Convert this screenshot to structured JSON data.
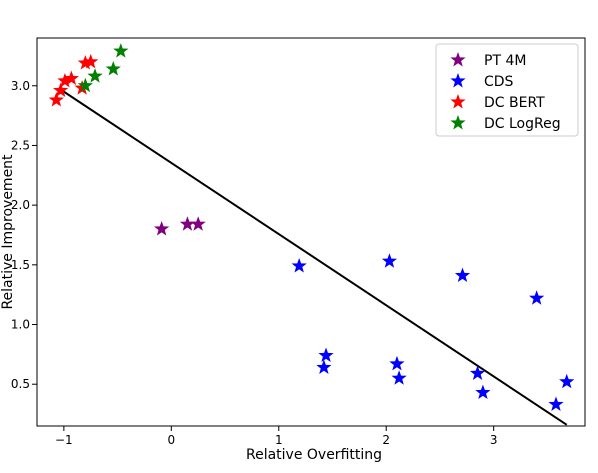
{
  "chart_data": {
    "type": "scatter",
    "xlabel": "Relative Overfitting",
    "ylabel": "Relative Improvement",
    "xlim": [
      -1.25,
      3.85
    ],
    "ylim": [
      0.15,
      3.4
    ],
    "xticks": [
      -1,
      0,
      1,
      2,
      3
    ],
    "yticks": [
      0.5,
      1.0,
      1.5,
      2.0,
      2.5,
      3.0
    ],
    "xtick_labels": [
      "−1",
      "0",
      "1",
      "2",
      "3"
    ],
    "ytick_labels": [
      "0.5",
      "1.0",
      "1.5",
      "2.0",
      "2.5",
      "3.0"
    ],
    "grid": false,
    "legend_position": "top-right",
    "series": [
      {
        "name": "PT 4M",
        "color": "#800080",
        "marker": "star",
        "points": [
          [
            -0.09,
            1.8
          ],
          [
            0.15,
            1.84
          ],
          [
            0.25,
            1.84
          ]
        ]
      },
      {
        "name": "CDS",
        "color": "#0000ff",
        "marker": "star",
        "points": [
          [
            1.19,
            1.49
          ],
          [
            1.42,
            0.64
          ],
          [
            1.44,
            0.74
          ],
          [
            2.03,
            1.53
          ],
          [
            2.1,
            0.67
          ],
          [
            2.12,
            0.55
          ],
          [
            2.71,
            1.41
          ],
          [
            2.85,
            0.59
          ],
          [
            2.9,
            0.43
          ],
          [
            3.4,
            1.22
          ],
          [
            3.58,
            0.33
          ],
          [
            3.68,
            0.52
          ]
        ]
      },
      {
        "name": "DC BERT",
        "color": "#ff0000",
        "marker": "star",
        "points": [
          [
            -1.07,
            2.88
          ],
          [
            -1.03,
            2.96
          ],
          [
            -0.99,
            3.04
          ],
          [
            -0.93,
            3.06
          ],
          [
            -0.83,
            2.98
          ],
          [
            -0.8,
            3.19
          ],
          [
            -0.75,
            3.2
          ]
        ]
      },
      {
        "name": "DC LogReg",
        "color": "#008000",
        "marker": "star",
        "points": [
          [
            -0.8,
            3.0
          ],
          [
            -0.71,
            3.08
          ],
          [
            -0.54,
            3.14
          ],
          [
            -0.47,
            3.29
          ]
        ]
      }
    ],
    "trend_line": {
      "color": "#000000",
      "points": [
        [
          -1.05,
          2.98
        ],
        [
          3.68,
          0.16
        ]
      ]
    }
  }
}
